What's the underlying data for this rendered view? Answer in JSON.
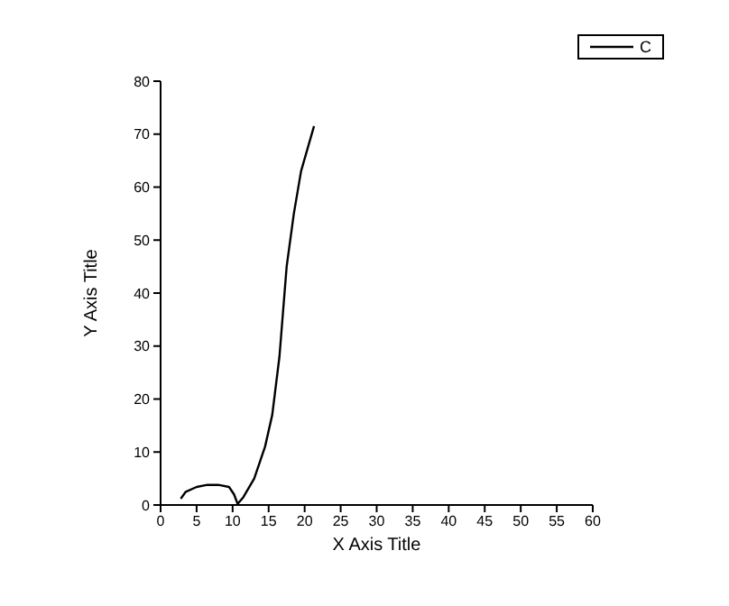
{
  "chart_data": {
    "type": "line",
    "xlabel": "X Axis Title",
    "ylabel": "Y Axis Title",
    "series": [
      {
        "name": "C",
        "color": "#000000",
        "x": [
          2.8,
          3.5,
          5,
          6.5,
          8,
          9.5,
          10.2,
          10.7,
          11.5,
          13,
          14.5,
          15.5,
          16.5,
          17.5,
          18.5,
          19.5,
          21.3
        ],
        "values": [
          1.2,
          2.5,
          3.4,
          3.8,
          3.8,
          3.4,
          2,
          0.2,
          1.5,
          5,
          11,
          17,
          28,
          45,
          55,
          63,
          71.5
        ]
      }
    ],
    "xlim": [
      0,
      60
    ],
    "xticks": [
      0,
      5,
      10,
      15,
      20,
      25,
      30,
      35,
      40,
      45,
      50,
      55,
      60
    ],
    "ylim": [
      0,
      80
    ],
    "yticks": [
      0,
      10,
      20,
      30,
      40,
      50,
      60,
      70,
      80
    ],
    "grid": false,
    "legend": "top right",
    "marker": "none",
    "line_style": "solid"
  }
}
